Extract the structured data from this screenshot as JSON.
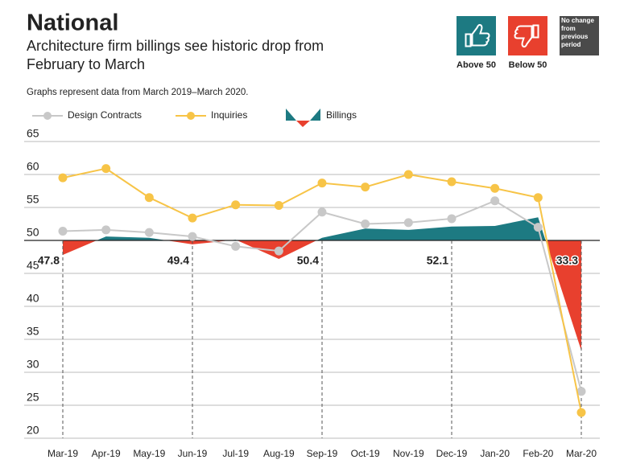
{
  "chart_data": {
    "type": "line",
    "title": "National",
    "subtitle": "Architecture firm billings see historic drop from February to March",
    "note": "Graphs represent data from March 2019–March 2020.",
    "key": [
      {
        "label": "Above 50",
        "color": "#1d7a82"
      },
      {
        "label": "Below 50",
        "color": "#e8402e"
      },
      {
        "label": "No change from previous period",
        "color": "#4a4a4a"
      }
    ],
    "categories": [
      "Mar-19",
      "Apr-19",
      "May-19",
      "Jun-19",
      "Jul-19",
      "Aug-19",
      "Sep-19",
      "Oct-19",
      "Nov-19",
      "Dec-19",
      "Jan-20",
      "Feb-20",
      "Mar-20"
    ],
    "series": [
      {
        "name": "Design Contracts",
        "kind": "line",
        "color": "#c8c8c8",
        "values": [
          51.4,
          51.6,
          51.2,
          50.6,
          49.1,
          48.4,
          54.3,
          52.5,
          52.7,
          53.3,
          56.0,
          52.0,
          27.1
        ]
      },
      {
        "name": "Inquiries",
        "kind": "line",
        "color": "#f7c447",
        "values": [
          59.5,
          60.9,
          56.5,
          53.4,
          55.4,
          55.3,
          58.7,
          58.1,
          60.0,
          58.9,
          57.9,
          56.5,
          23.9
        ]
      },
      {
        "name": "Billings",
        "kind": "area",
        "baseline": 50,
        "color_above": "#1d7a82",
        "color_below": "#e8402e",
        "label_every": 3,
        "values": [
          47.8,
          50.6,
          50.4,
          49.4,
          50.1,
          47.2,
          50.4,
          51.8,
          51.6,
          52.1,
          52.2,
          53.5,
          33.3
        ]
      }
    ],
    "ylim": [
      20,
      65
    ],
    "yticks": [
      20,
      25,
      30,
      35,
      40,
      45,
      50,
      55,
      60,
      65
    ],
    "grid": true
  }
}
